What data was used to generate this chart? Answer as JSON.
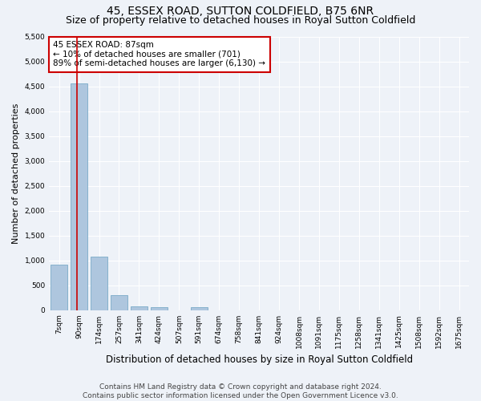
{
  "title": "45, ESSEX ROAD, SUTTON COLDFIELD, B75 6NR",
  "subtitle": "Size of property relative to detached houses in Royal Sutton Coldfield",
  "xlabel": "Distribution of detached houses by size in Royal Sutton Coldfield",
  "ylabel": "Number of detached properties",
  "footer1": "Contains HM Land Registry data © Crown copyright and database right 2024.",
  "footer2": "Contains public sector information licensed under the Open Government Licence v3.0.",
  "bar_labels": [
    "7sqm",
    "90sqm",
    "174sqm",
    "257sqm",
    "341sqm",
    "424sqm",
    "507sqm",
    "591sqm",
    "674sqm",
    "758sqm",
    "841sqm",
    "924sqm",
    "1008sqm",
    "1091sqm",
    "1175sqm",
    "1258sqm",
    "1341sqm",
    "1425sqm",
    "1508sqm",
    "1592sqm",
    "1675sqm"
  ],
  "bar_values": [
    920,
    4560,
    1075,
    305,
    80,
    60,
    0,
    65,
    0,
    0,
    0,
    0,
    0,
    0,
    0,
    0,
    0,
    0,
    0,
    0,
    0
  ],
  "bar_color": "#aec6de",
  "bar_edge_color": "#7aaac8",
  "vline_x": 0.88,
  "annotation_text": "45 ESSEX ROAD: 87sqm\n← 10% of detached houses are smaller (701)\n89% of semi-detached houses are larger (6,130) →",
  "annotation_box_color": "#ffffff",
  "annotation_box_edge": "#cc0000",
  "vline_color": "#cc0000",
  "ylim": [
    0,
    5500
  ],
  "yticks": [
    0,
    500,
    1000,
    1500,
    2000,
    2500,
    3000,
    3500,
    4000,
    4500,
    5000,
    5500
  ],
  "bg_color": "#eef2f8",
  "grid_color": "#ffffff",
  "title_fontsize": 10,
  "subtitle_fontsize": 9,
  "xlabel_fontsize": 8.5,
  "ylabel_fontsize": 8,
  "tick_fontsize": 6.5,
  "footer_fontsize": 6.5,
  "annotation_fontsize": 7.5
}
